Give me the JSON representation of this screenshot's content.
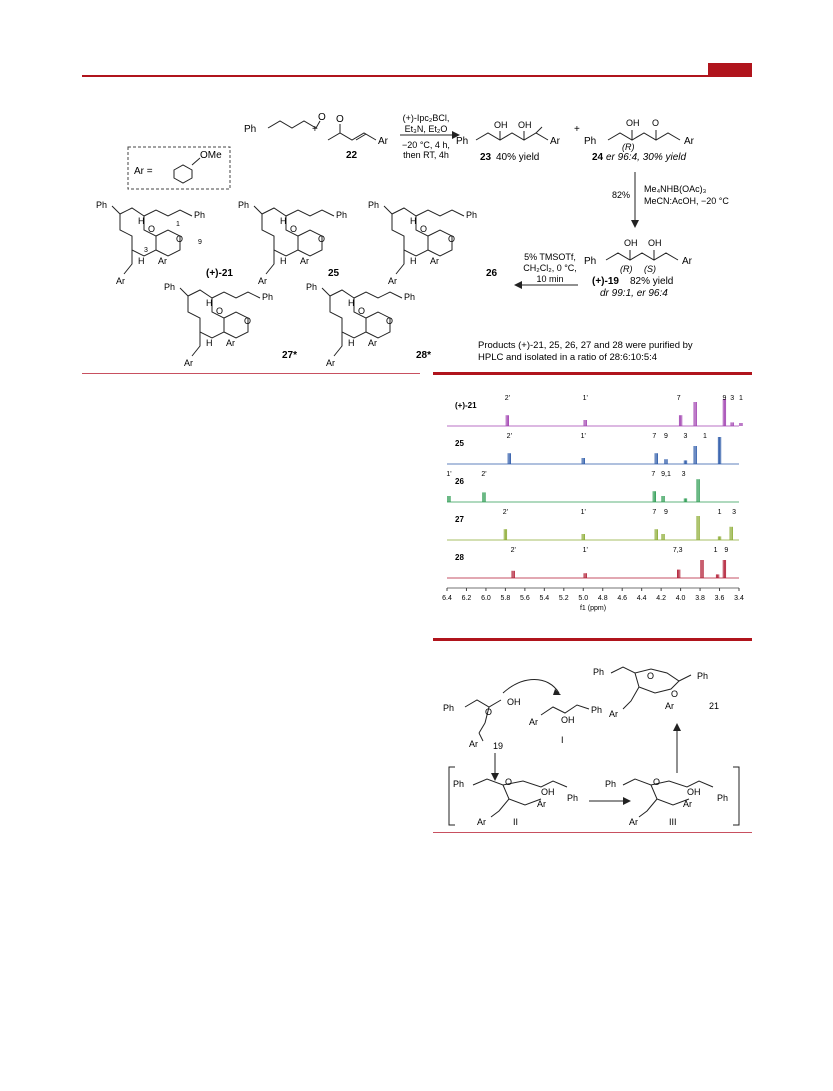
{
  "header": {
    "accent_color": "#b0141c"
  },
  "scheme": {
    "aldehyde_ph": "Ph",
    "enone_label": "22",
    "enone_ar": "Ar",
    "reagents_1": [
      "(+)-Ipc₂BCl,",
      "Et₃N, Et₂O",
      "−20 °C, 4 h,",
      "then RT,  4h"
    ],
    "prod23_label": "23",
    "prod23_yield": "40% yield",
    "prod24_label": "24",
    "prod24_er": "er 96:4, 30% yield",
    "r_descriptor": "(R)",
    "s_descriptor": "(S)",
    "ar_def": "Ar =",
    "ome": "OMe",
    "red_yield": "82%",
    "reagents_2": [
      "Me₄NHB(OAc)₃",
      "MeCN:AcOH, −20 °C"
    ],
    "cyclization": [
      "5% TMSOTf,",
      "CH₂Cl₂, 0 °C,",
      "10 min"
    ],
    "prod19_label": "(+)-19",
    "prod19_yield": "82% yield",
    "prod19_dr": "dr 99:1, er 96:4",
    "products": [
      {
        "label": "(+)-21"
      },
      {
        "label": "25"
      },
      {
        "label": "26"
      },
      {
        "label": "27*"
      },
      {
        "label": "28*"
      }
    ],
    "ph": "Ph",
    "ar": "Ar",
    "o": "O",
    "h": "H",
    "num_1": "1",
    "num_3": "3",
    "num_9": "9",
    "note": [
      "Products (+)-21, 25, 26, 27 and 28 were purified by",
      "HPLC and isolated in a ratio of 28:6:10:5:4"
    ]
  },
  "nmr": {
    "xlabel": "f1 (ppm)",
    "ticks": [
      "6.4",
      "6.2",
      "6.0",
      "5.8",
      "5.6",
      "5.4",
      "5.2",
      "5.0",
      "4.8",
      "4.6",
      "4.4",
      "4.2",
      "4.0",
      "3.8",
      "3.6",
      "3.4"
    ],
    "spectra": [
      {
        "label": "(+)-21",
        "color": "#a040b0",
        "peaks": [
          {
            "ppm": 5.78,
            "h": 18
          },
          {
            "ppm": 4.98,
            "h": 10
          },
          {
            "ppm": 4.0,
            "h": 18
          },
          {
            "ppm": 3.85,
            "h": 40
          },
          {
            "ppm": 3.55,
            "h": 45
          },
          {
            "ppm": 3.47,
            "h": 6
          },
          {
            "ppm": 3.38,
            "h": 5
          }
        ],
        "labels": [
          {
            "ppm": 5.78,
            "t": "2'"
          },
          {
            "ppm": 4.98,
            "t": "1'"
          },
          {
            "ppm": 4.02,
            "t": "7"
          },
          {
            "ppm": 3.55,
            "t": "9"
          },
          {
            "ppm": 3.47,
            "t": "3"
          },
          {
            "ppm": 3.38,
            "t": "1"
          }
        ]
      },
      {
        "label": "25",
        "color": "#2a58a8",
        "peaks": [
          {
            "ppm": 5.76,
            "h": 18
          },
          {
            "ppm": 5.0,
            "h": 10
          },
          {
            "ppm": 4.25,
            "h": 18
          },
          {
            "ppm": 4.15,
            "h": 8
          },
          {
            "ppm": 3.95,
            "h": 6
          },
          {
            "ppm": 3.85,
            "h": 30
          },
          {
            "ppm": 3.6,
            "h": 45
          }
        ],
        "labels": [
          {
            "ppm": 5.76,
            "t": "2'"
          },
          {
            "ppm": 5.0,
            "t": "1'"
          },
          {
            "ppm": 4.27,
            "t": "7"
          },
          {
            "ppm": 4.15,
            "t": "9"
          },
          {
            "ppm": 3.95,
            "t": "3"
          },
          {
            "ppm": 3.75,
            "t": "1"
          }
        ]
      },
      {
        "label": "26",
        "color": "#2a9a50",
        "peaks": [
          {
            "ppm": 6.38,
            "h": 10
          },
          {
            "ppm": 6.02,
            "h": 16
          },
          {
            "ppm": 4.27,
            "h": 18
          },
          {
            "ppm": 4.18,
            "h": 10
          },
          {
            "ppm": 3.95,
            "h": 6
          },
          {
            "ppm": 3.82,
            "h": 38
          }
        ],
        "labels": [
          {
            "ppm": 6.38,
            "t": "1'"
          },
          {
            "ppm": 6.02,
            "t": "2'"
          },
          {
            "ppm": 4.28,
            "t": "7"
          },
          {
            "ppm": 4.15,
            "t": "9,1"
          },
          {
            "ppm": 3.97,
            "t": "3"
          }
        ]
      },
      {
        "label": "27",
        "color": "#8aaa30",
        "peaks": [
          {
            "ppm": 5.8,
            "h": 18
          },
          {
            "ppm": 5.0,
            "h": 10
          },
          {
            "ppm": 4.25,
            "h": 18
          },
          {
            "ppm": 4.18,
            "h": 10
          },
          {
            "ppm": 3.82,
            "h": 40
          },
          {
            "ppm": 3.6,
            "h": 6
          },
          {
            "ppm": 3.48,
            "h": 22
          }
        ],
        "labels": [
          {
            "ppm": 5.8,
            "t": "2'"
          },
          {
            "ppm": 5.0,
            "t": "1'"
          },
          {
            "ppm": 4.27,
            "t": "7"
          },
          {
            "ppm": 4.15,
            "t": "9"
          },
          {
            "ppm": 3.6,
            "t": "1"
          },
          {
            "ppm": 3.45,
            "t": "3"
          }
        ]
      },
      {
        "label": "28",
        "color": "#b01830",
        "peaks": [
          {
            "ppm": 5.72,
            "h": 12
          },
          {
            "ppm": 4.98,
            "h": 8
          },
          {
            "ppm": 4.02,
            "h": 14
          },
          {
            "ppm": 3.78,
            "h": 30
          },
          {
            "ppm": 3.62,
            "h": 6
          },
          {
            "ppm": 3.55,
            "h": 30
          }
        ],
        "labels": [
          {
            "ppm": 5.72,
            "t": "2'"
          },
          {
            "ppm": 4.98,
            "t": "1'"
          },
          {
            "ppm": 4.03,
            "t": "7,3"
          },
          {
            "ppm": 3.64,
            "t": "1"
          },
          {
            "ppm": 3.53,
            "t": "9"
          }
        ]
      }
    ]
  },
  "mechanism": {
    "ph": "Ph",
    "ar": "Ar",
    "oh": "OH",
    "o": "O",
    "labels": {
      "i": "I",
      "ii": "II",
      "iii": "III",
      "c19": "19",
      "c21": "21"
    }
  }
}
